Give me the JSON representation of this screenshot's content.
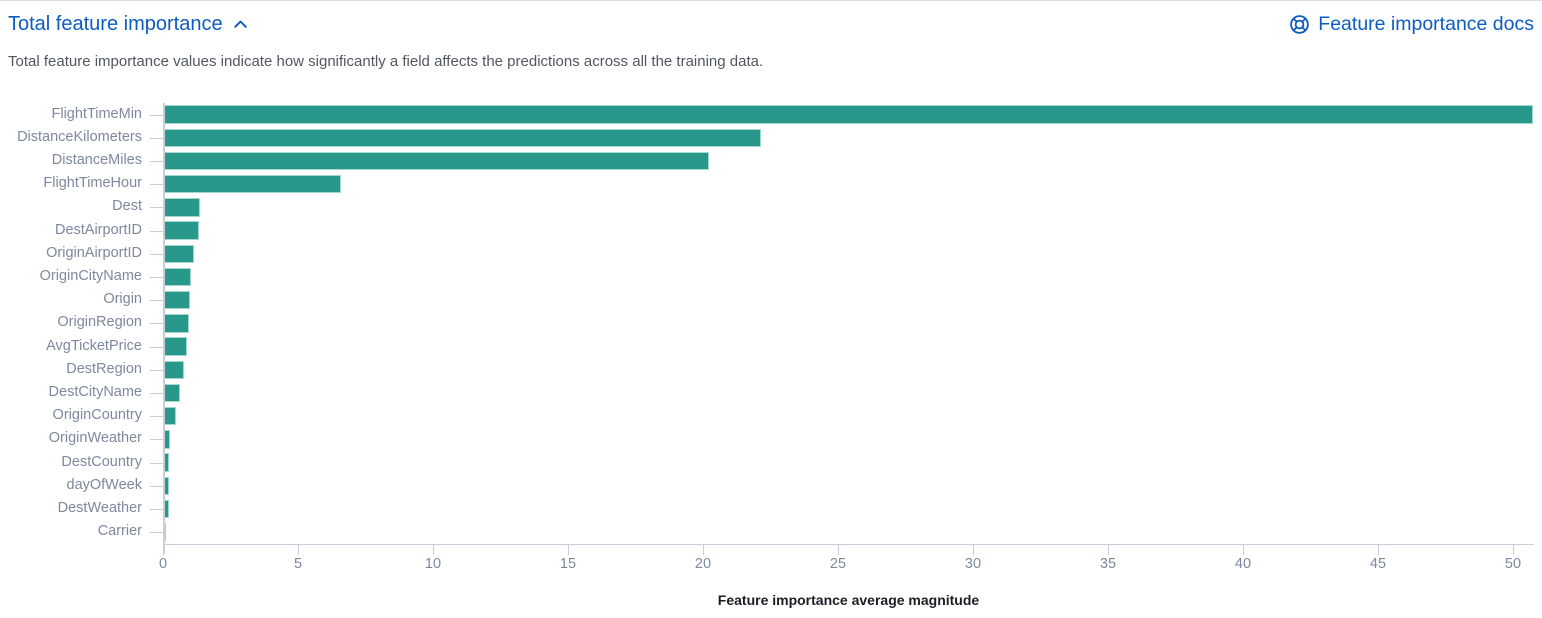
{
  "header": {
    "section_title": "Total feature importance",
    "docs_link_label": "Feature importance docs"
  },
  "description": "Total feature importance values indicate how significantly a field affects the predictions across all the training data.",
  "icons": {
    "collapse_icon": "chevron-up",
    "docs_icon": "lifebuoy"
  },
  "colors": {
    "link_blue": "#0d5cc1",
    "bar_teal": "#27988a",
    "bar_border": "#a2d9cc",
    "axis_line": "#c9cddb",
    "tick_label": "#7e889e",
    "description_text": "#51575f",
    "axis_title_text": "#1b1e24"
  },
  "chart_data": {
    "type": "bar",
    "orientation": "horizontal",
    "title": "",
    "xlabel": "Feature importance average magnitude",
    "ylabel": "",
    "grid": false,
    "legend": false,
    "xlim": [
      0,
      50.8
    ],
    "xticks": [
      0,
      5,
      10,
      15,
      20,
      25,
      30,
      35,
      40,
      45,
      50
    ],
    "categories": [
      "FlightTimeMin",
      "DistanceKilometers",
      "DistanceMiles",
      "FlightTimeHour",
      "Dest",
      "DestAirportID",
      "OriginAirportID",
      "OriginCityName",
      "Origin",
      "OriginRegion",
      "AvgTicketPrice",
      "DestRegion",
      "DestCityName",
      "OriginCountry",
      "OriginWeather",
      "DestCountry",
      "dayOfWeek",
      "DestWeather",
      "Carrier"
    ],
    "values": [
      50.7,
      22.1,
      20.2,
      6.55,
      1.33,
      1.3,
      1.11,
      1.0,
      0.96,
      0.93,
      0.87,
      0.74,
      0.61,
      0.44,
      0.22,
      0.2,
      0.19,
      0.17,
      0.07
    ]
  }
}
